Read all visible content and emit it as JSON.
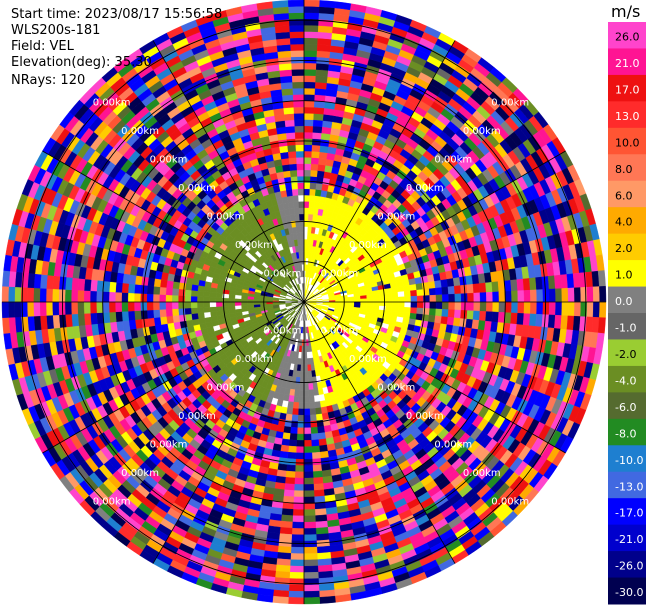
{
  "header": {
    "start_time": "Start time: 2023/08/17 15:56:58",
    "instrument": "WLS200s-181",
    "field": "Field: VEL",
    "elevation": "Elevation(deg): 35.30",
    "nrays": "NRays: 120"
  },
  "chart_data": {
    "type": "heatmap",
    "projection": "polar-ppi",
    "title": "",
    "units": "m/s",
    "colorbar": {
      "label": "m/s",
      "ticks": [
        "26.0",
        "21.0",
        "17.0",
        "13.0",
        "10.0",
        "8.0",
        "6.0",
        "4.0",
        "2.0",
        "1.0",
        "0.0",
        "-1.0",
        "-2.0",
        "-4.0",
        "-6.0",
        "-8.0",
        "-10.0",
        "-13.0",
        "-17.0",
        "-21.0",
        "-26.0",
        "-30.0"
      ],
      "bins": [
        {
          "min": 26,
          "max": 30,
          "color": "#ff44cc"
        },
        {
          "min": 21,
          "max": 26,
          "color": "#ff1493"
        },
        {
          "min": 17,
          "max": 21,
          "color": "#ee1111"
        },
        {
          "min": 13,
          "max": 17,
          "color": "#ff2b2b"
        },
        {
          "min": 10,
          "max": 13,
          "color": "#ff5533"
        },
        {
          "min": 8,
          "max": 10,
          "color": "#ff7755"
        },
        {
          "min": 6,
          "max": 8,
          "color": "#ff9966"
        },
        {
          "min": 4,
          "max": 6,
          "color": "#ffaa00"
        },
        {
          "min": 2,
          "max": 4,
          "color": "#ffcc00"
        },
        {
          "min": 1,
          "max": 2,
          "color": "#ffff00"
        },
        {
          "min": 0,
          "max": 1,
          "color": "#808080"
        },
        {
          "min": -1,
          "max": 0,
          "color": "#666666"
        },
        {
          "min": -2,
          "max": -1,
          "color": "#9acd32"
        },
        {
          "min": -4,
          "max": -2,
          "color": "#6b8e23"
        },
        {
          "min": -6,
          "max": -4,
          "color": "#556b2f"
        },
        {
          "min": -8,
          "max": -6,
          "color": "#228b22"
        },
        {
          "min": -10,
          "max": -8,
          "color": "#1e7fd0"
        },
        {
          "min": -13,
          "max": -10,
          "color": "#4169e1"
        },
        {
          "min": -17,
          "max": -13,
          "color": "#0000ff"
        },
        {
          "min": -21,
          "max": -17,
          "color": "#0000cd"
        },
        {
          "min": -26,
          "max": -21,
          "color": "#00008b"
        },
        {
          "min": -30,
          "max": -26,
          "color": "#000050"
        }
      ]
    },
    "range_rings_km": [
      1,
      2,
      3,
      4,
      5,
      6,
      7
    ],
    "ring_label": "0.00km",
    "max_range_km": 7.5,
    "nrays": 120,
    "ngates": 48,
    "near_field": {
      "max_range_km": 2.6,
      "sectors": [
        {
          "az_from": 0,
          "az_to": 170,
          "dominant_velocity": 1.5
        },
        {
          "az_from": 170,
          "az_to": 200,
          "dominant_velocity": 0.5
        },
        {
          "az_from": 200,
          "az_to": 345,
          "dominant_velocity": -2.5
        },
        {
          "az_from": 345,
          "az_to": 360,
          "dominant_velocity": 0.5
        }
      ]
    },
    "far_field": "noise (random velocities across full scale)"
  }
}
